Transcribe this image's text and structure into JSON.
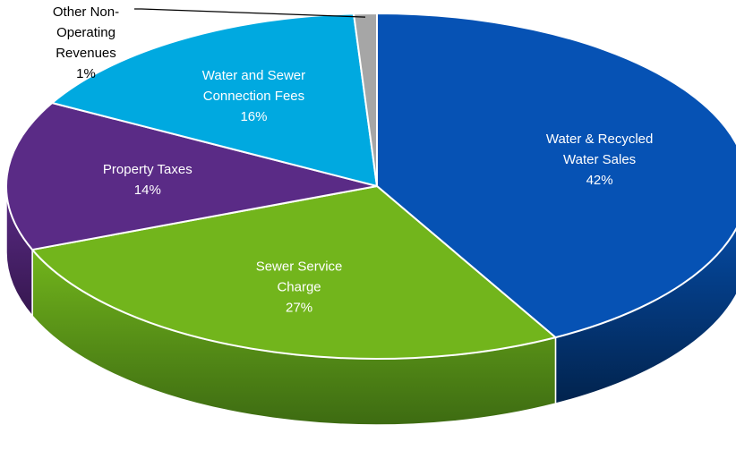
{
  "chart_data": {
    "type": "pie",
    "style": "3d",
    "title": "",
    "slices": [
      {
        "label_lines": [
          "Water & Recycled",
          "Water Sales"
        ],
        "pct_text": "42%",
        "value": 42,
        "color": "#0652b4",
        "side_color": "#02234d",
        "label_color": "#ffffff"
      },
      {
        "label_lines": [
          "Sewer Service",
          "Charge"
        ],
        "pct_text": "27%",
        "value": 27,
        "color": "#72b51c",
        "side_color": "#3d6b12",
        "label_color": "#ffffff"
      },
      {
        "label_lines": [
          "Property Taxes"
        ],
        "pct_text": "14%",
        "value": 14,
        "color": "#5a2b86",
        "side_color": "#36174f",
        "label_color": "#ffffff"
      },
      {
        "label_lines": [
          "Water and Sewer",
          "Connection Fees"
        ],
        "pct_text": "16%",
        "value": 16,
        "color": "#00a9e0",
        "side_color": "#00607e",
        "label_color": "#ffffff"
      },
      {
        "label_lines": [
          "Other Non-",
          "Operating",
          "Revenues"
        ],
        "pct_text": "1%",
        "value": 1,
        "color": "#a6a6a6",
        "side_color": "#6b6b6b",
        "label_color": "#000000"
      }
    ]
  }
}
